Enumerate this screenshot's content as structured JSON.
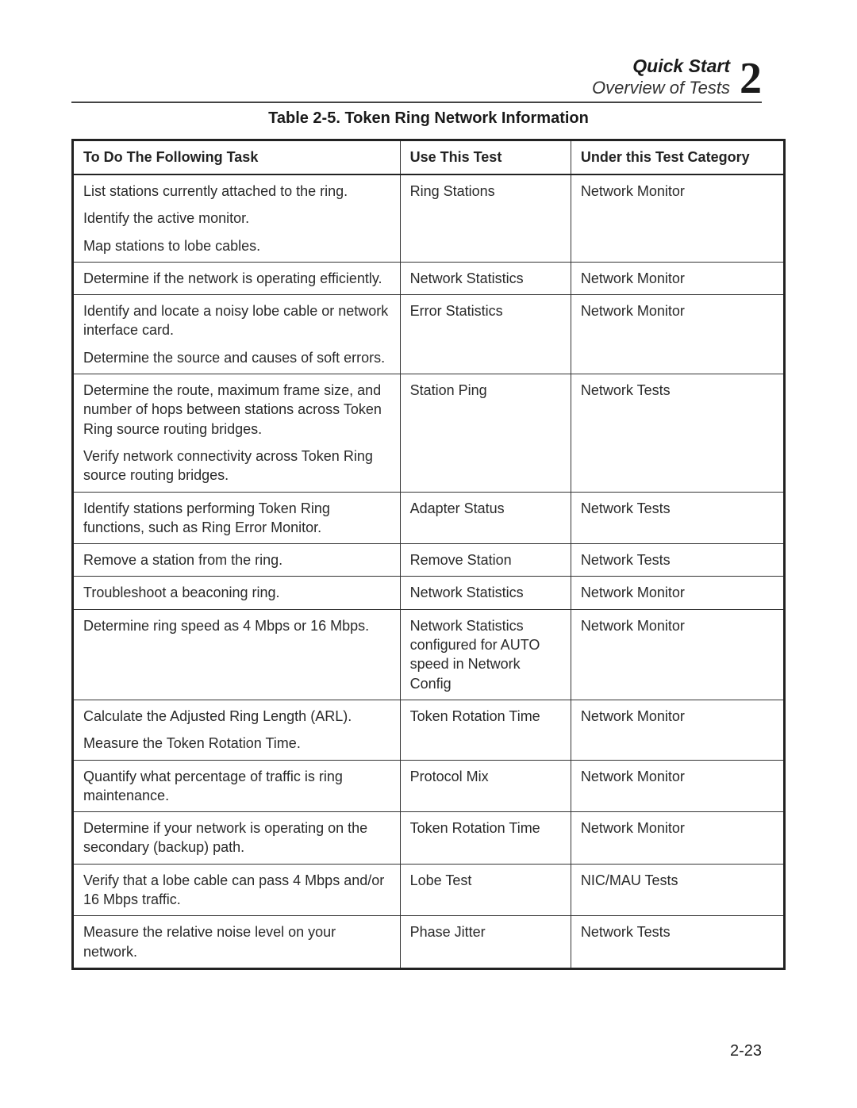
{
  "header": {
    "title": "Quick Start",
    "subtitle": "Overview of Tests",
    "chapter_digit": "2"
  },
  "caption": "Table 2-5.  Token Ring Network Information",
  "columns": {
    "task": "To Do The Following Task",
    "test": "Use This Test",
    "category": "Under this Test Category"
  },
  "rows": [
    {
      "tasks": [
        "List stations currently attached to the ring.",
        "Identify the active monitor.",
        "Map stations to lobe cables."
      ],
      "test": "Ring Stations",
      "category": "Network Monitor"
    },
    {
      "tasks": [
        "Determine if the network is operating efficiently."
      ],
      "test": "Network Statistics",
      "category": "Network Monitor"
    },
    {
      "tasks": [
        "Identify and locate a noisy lobe cable or network interface card.",
        "Determine the source and causes of soft errors."
      ],
      "test": "Error Statistics",
      "category": "Network Monitor"
    },
    {
      "tasks": [
        "Determine the route, maximum frame size, and number of hops between stations across Token Ring source routing bridges.",
        "Verify network connectivity across Token Ring source routing bridges."
      ],
      "test": "Station Ping",
      "category": "Network Tests"
    },
    {
      "tasks": [
        "Identify stations performing Token Ring functions, such as Ring Error Monitor."
      ],
      "test": "Adapter Status",
      "category": "Network Tests"
    },
    {
      "tasks": [
        "Remove a station from the ring."
      ],
      "test": "Remove Station",
      "category": "Network Tests"
    },
    {
      "tasks": [
        "Troubleshoot a beaconing ring."
      ],
      "test": "Network Statistics",
      "category": "Network Monitor"
    },
    {
      "tasks": [
        "Determine ring speed as 4 Mbps or 16 Mbps."
      ],
      "test": "Network Statistics configured for AUTO speed in Network Config",
      "category": "Network Monitor"
    },
    {
      "tasks": [
        "Calculate the Adjusted Ring Length (ARL).",
        "Measure the Token Rotation Time."
      ],
      "test": "Token Rotation Time",
      "category": "Network Monitor"
    },
    {
      "tasks": [
        "Quantify what percentage of traffic is ring maintenance."
      ],
      "test": "Protocol Mix",
      "category": "Network Monitor"
    },
    {
      "tasks": [
        "Determine if your network is operating on the secondary (backup) path."
      ],
      "test": "Token Rotation Time",
      "category": "Network Monitor"
    },
    {
      "tasks": [
        "Verify that a lobe cable can pass 4 Mbps and/or 16 Mbps traffic."
      ],
      "test": "Lobe Test",
      "category": "NIC/MAU Tests"
    },
    {
      "tasks": [
        "Measure the relative noise level on your network."
      ],
      "test": "Phase Jitter",
      "category": "Network Tests"
    }
  ],
  "page_number": "2-23",
  "style": {
    "page_bg": "#ffffff",
    "text_color": "#222222",
    "border_color": "#222222",
    "font_family": "Arial, Helvetica, sans-serif",
    "caption_fontsize": 20,
    "body_fontsize": 18,
    "header_title_fontsize": 23,
    "header_sub_fontsize": 22,
    "chapter_digit_fontsize": 56,
    "col_widths_pct": {
      "task": 46,
      "test": 24,
      "category": 30
    }
  }
}
